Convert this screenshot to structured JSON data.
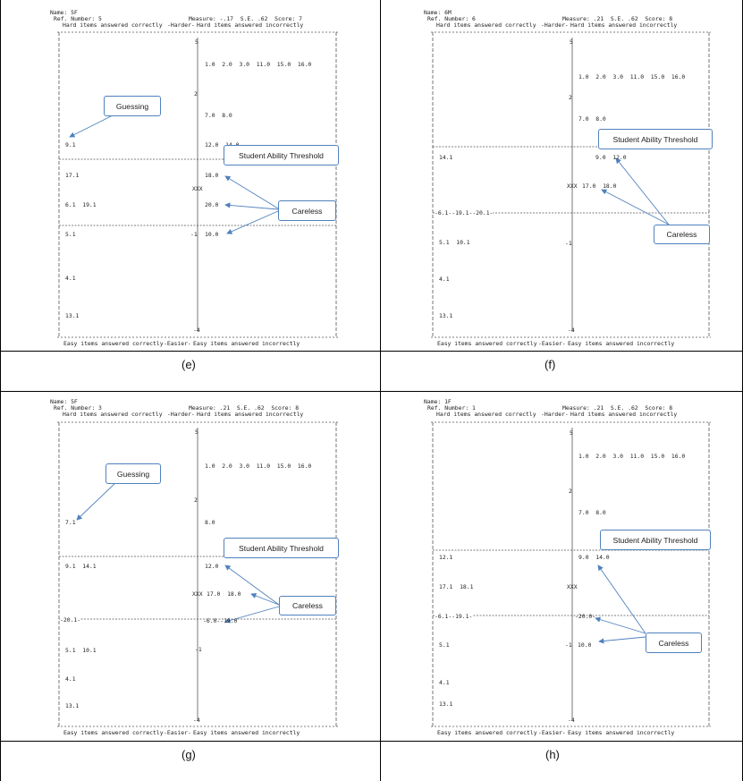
{
  "colors": {
    "arrow": "#4f81bd",
    "grid": "#000000",
    "dash": "#333333"
  },
  "panels": [
    {
      "caption": "(e)",
      "name": "Name: 5F",
      "ref": "Ref. Number: 5",
      "measure": "Measure: -.17  S.E. .62  Score: 7",
      "hdr_left": "Hard items answered correctly",
      "hdr_mid": "-Harder-",
      "hdr_right": "Hard items answered incorrectly",
      "ftr_left": "Easy items answered correctly",
      "ftr_mid": "-Easier-",
      "ftr_right": "Easy items answered incorrectly",
      "scale_top": "5",
      "scale_mid": "2",
      "scale_lower": "-1",
      "scale_bottom": "-4",
      "items_right": [
        "1.0  2.0  3.0  11.0  15.0  16.0",
        "7.0  8.0",
        "12.0  14.0",
        "18.0",
        "20.0",
        "10.0"
      ],
      "items_left": [
        "9.1",
        "17.1",
        "6.1  19.1",
        "5.1",
        "4.1",
        "13.1"
      ],
      "xxx": "XXX",
      "dash_label": "",
      "callouts": {
        "guessing": "Guessing",
        "threshold": "Student Ability Threshold",
        "careless": "Careless"
      }
    },
    {
      "caption": "(f)",
      "name": "Name: 6M",
      "ref": "Ref. Number: 6",
      "measure": "Measure: .21  S.E. .62  Score: 8",
      "hdr_left": "Hard items answered correctly",
      "hdr_mid": "-Harder-",
      "hdr_right": "Hard items answered incorrectly",
      "ftr_left": "Easy items answered correctly",
      "ftr_mid": "-Easier-",
      "ftr_right": "Easy items answered incorrectly",
      "scale_top": "5",
      "scale_mid": "2",
      "scale_lower": "-1",
      "scale_bottom": "-4",
      "items_right": [
        "1.0  2.0  3.0  11.0  15.0  16.0",
        "7.0  8.0",
        "9.0  12.0",
        "17.0  18.0"
      ],
      "items_left": [
        "14.1",
        "5.1  10.1",
        "4.1",
        "13.1"
      ],
      "xxx": "XXX",
      "dash_label": "-6.1--19.1--20.1-",
      "callouts": {
        "threshold": "Student Ability Threshold",
        "careless": "Careless"
      }
    },
    {
      "caption": "(g)",
      "name": "Name: 5F",
      "ref": "Ref. Number: 3",
      "measure": "Measure: .21  S.E. .62  Score: 8",
      "hdr_left": "Hard items answered correctly",
      "hdr_mid": "-Harder-",
      "hdr_right": "Hard items answered incorrectly",
      "ftr_left": "Easy items answered correctly",
      "ftr_mid": "-Easier-",
      "ftr_right": "Easy items answered incorrectly",
      "scale_top": "5",
      "scale_mid": "2",
      "scale_lower": "-1",
      "scale_bottom": "-4",
      "items_right": [
        "1.0  2.0  3.0  11.0  15.0  16.0",
        "8.0",
        "12.0",
        "17.0  18.0",
        "-6.0--19.0"
      ],
      "items_left": [
        "7.1",
        "9.1  14.1",
        "5.1  10.1",
        "4.1",
        "13.1"
      ],
      "xxx": "XXX",
      "dash_label": "-20.1-",
      "callouts": {
        "guessing": "Guessing",
        "threshold": "Student Ability Threshold",
        "careless": "Careless"
      }
    },
    {
      "caption": "(h)",
      "name": "Name: 1F",
      "ref": "Ref. Number: 1",
      "measure": "Measure: .21  S.E. .62  Score: 8",
      "hdr_left": "Hard items answered correctly",
      "hdr_mid": "-Harder-",
      "hdr_right": "Hard items answered incorrectly",
      "ftr_left": "Easy items answered correctly",
      "ftr_mid": "-Easier-",
      "ftr_right": "Easy items answered incorrectly",
      "scale_top": "5",
      "scale_mid": "2",
      "scale_lower": "-1",
      "scale_bottom": "-4",
      "items_right": [
        "1.0  2.0  3.0  11.0  15.0  16.0",
        "7.0  8.0",
        "9.0  14.0",
        "-20.0-",
        "10.0"
      ],
      "items_left": [
        "12.1",
        "17.1  18.1",
        "5.1",
        "4.1",
        "13.1"
      ],
      "xxx": "XXX",
      "dash_label": "-6.1--19.1-",
      "callouts": {
        "threshold": "Student Ability Threshold",
        "careless": "Careless"
      }
    }
  ]
}
